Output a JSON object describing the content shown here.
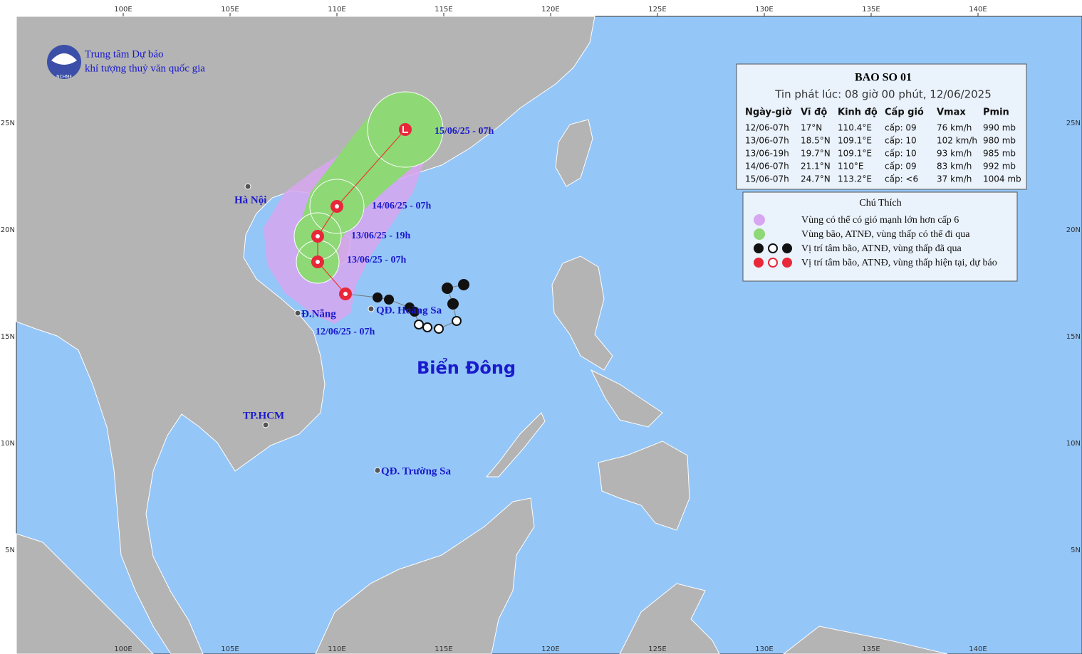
{
  "header": {
    "org_line_1": "Trung tâm Dự báo",
    "org_line_2": "khí tượng thuỷ văn quốc gia",
    "logo_text": "NCHMF"
  },
  "axes": {
    "longitude_labels": [
      "100E",
      "105E",
      "110E",
      "115E",
      "120E",
      "125E",
      "130E",
      "135E",
      "140E"
    ],
    "latitude_labels": [
      "25N",
      "20N",
      "15N",
      "10N",
      "5N"
    ]
  },
  "bulletin": {
    "title": "BAO SO 01",
    "issued": "Tin phát lúc: 08 giờ 00 phút, 12/06/2025",
    "columns": [
      "Ngày-giờ",
      "Vĩ độ",
      "Kinh độ",
      "Cấp gió",
      "Vmax",
      "Pmin"
    ],
    "rows": [
      [
        "12/06-07h",
        "17°N",
        "110.4°E",
        "cấp: 09",
        "76 km/h",
        "990 mb"
      ],
      [
        "13/06-07h",
        "18.5°N",
        "109.1°E",
        "cấp: 10",
        "102 km/h",
        "980 mb"
      ],
      [
        "13/06-19h",
        "19.7°N",
        "109.1°E",
        "cấp: 10",
        "93 km/h",
        "985 mb"
      ],
      [
        "14/06-07h",
        "21.1°N",
        "110°E",
        "cấp: 09",
        "83 km/h",
        "992 mb"
      ],
      [
        "15/06-07h",
        "24.7°N",
        "113.2°E",
        "cấp: <6",
        "37 km/h",
        "1004 mb"
      ]
    ]
  },
  "legend": {
    "title": "Chú Thích",
    "items": [
      "Vùng có thể có gió mạnh lớn hơn cấp 6",
      "Vùng bão, ATNĐ, vùng thấp có thể đi qua",
      "Vị trí tâm bão, ATNĐ, vùng thấp đã qua",
      "Vị trí tâm bão, ATNĐ, vùng thấp hiện tại, dự báo"
    ]
  },
  "places": [
    "Hà Nội",
    "Đ.Nẵng",
    "TP.HCM",
    "QĐ. Hoàng Sa",
    "QĐ. Trường Sa"
  ],
  "sea_label": "Biển Đông",
  "track_labels": [
    "15/06/25 - 07h",
    "14/06/25 - 07h",
    "13/06/25 - 19h",
    "13/06/25 - 07h",
    "12/06/25 - 07h"
  ]
}
